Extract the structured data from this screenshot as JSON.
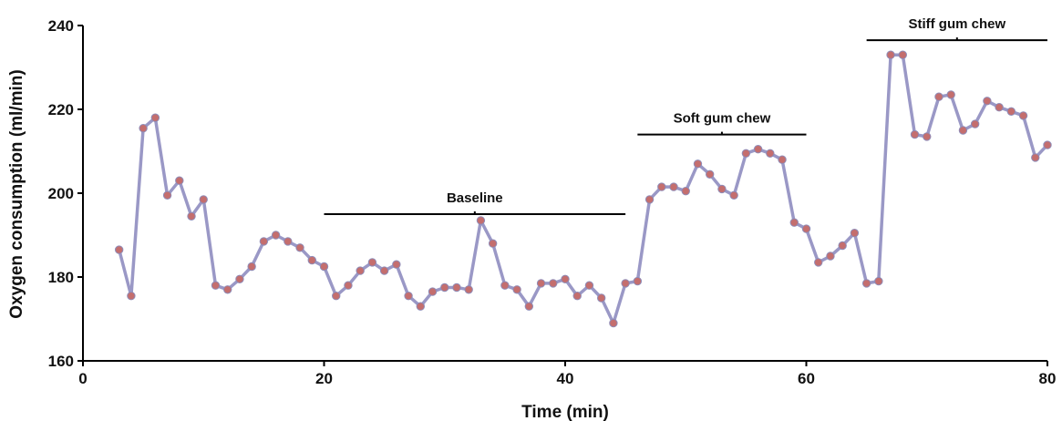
{
  "chart_data": {
    "type": "line",
    "title": "",
    "xlabel": "Time (min)",
    "ylabel": "Oxygen consumption (ml/min)",
    "xlim": [
      0,
      80
    ],
    "ylim": [
      160,
      240
    ],
    "xticks": [
      0,
      20,
      40,
      60,
      80
    ],
    "yticks": [
      160,
      180,
      200,
      220,
      240
    ],
    "grid": false,
    "line_color": "#9a98c6",
    "marker_color": "#c46e6e",
    "series": [
      {
        "x": [
          3,
          4,
          5,
          6,
          7,
          8,
          9,
          10,
          11,
          12,
          13,
          14,
          15,
          16,
          17,
          18,
          19,
          20,
          21,
          22,
          23,
          24,
          25,
          26,
          27,
          28,
          29,
          30,
          31,
          32,
          33,
          34,
          35,
          36,
          37,
          38,
          39,
          40,
          41,
          42,
          43,
          44,
          45,
          46,
          47,
          48,
          49,
          50,
          51,
          52,
          53,
          54,
          55,
          56,
          57,
          58,
          59,
          60,
          61,
          62,
          63,
          64,
          65,
          66,
          67,
          68,
          69,
          70,
          71,
          72,
          73,
          74,
          75,
          76,
          77,
          78,
          79,
          80
        ],
        "y": [
          186.5,
          175.5,
          215.5,
          218,
          199.5,
          203,
          194.5,
          198.5,
          178,
          177,
          179.5,
          182.5,
          188.5,
          190,
          188.5,
          187,
          184,
          182.5,
          175.5,
          178,
          181.5,
          183.5,
          181.5,
          183,
          175.5,
          173,
          176.5,
          177.5,
          177.5,
          177,
          193.5,
          188,
          178,
          177,
          173,
          178.5,
          178.5,
          179.5,
          175.5,
          178,
          175,
          169,
          178.5,
          179,
          198.5,
          201.5,
          201.5,
          200.5,
          207,
          204.5,
          201,
          199.5,
          209.5,
          210.5,
          209.5,
          208,
          193,
          191.5,
          183.5,
          185,
          187.5,
          190.5,
          178.5,
          179,
          233,
          233,
          214,
          213.5,
          223,
          223.5,
          215,
          216.5,
          222,
          220.5,
          219.5,
          218.5,
          208.5,
          211.5
        ]
      }
    ],
    "annotations": [
      {
        "label": "Baseline",
        "x_start": 20,
        "x_end": 45,
        "y": 195
      },
      {
        "label": "Soft gum chew",
        "x_start": 46,
        "x_end": 60,
        "y": 214
      },
      {
        "label": "Stiff gum chew",
        "x_start": 65,
        "x_end": 80,
        "y": 236.5
      }
    ]
  }
}
